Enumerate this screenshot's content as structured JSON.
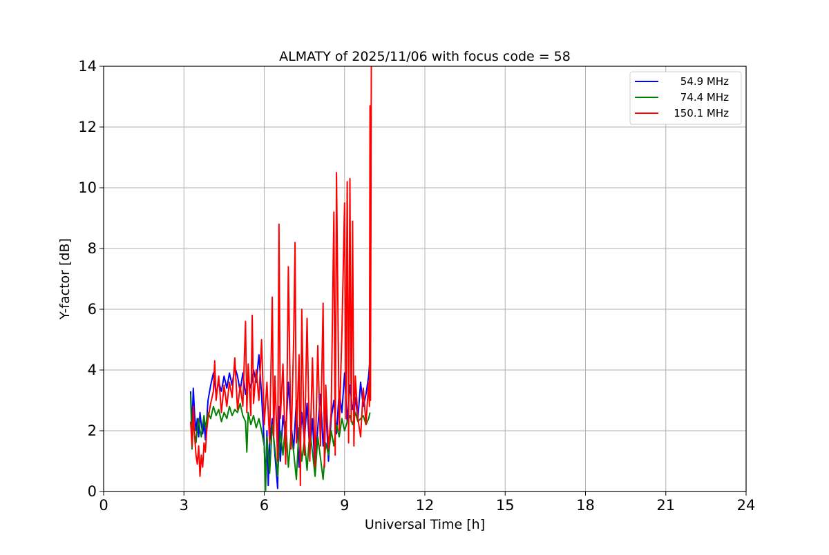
{
  "chart_data": {
    "type": "line",
    "title": "ALMATY of 2025/11/06 with focus code = 58",
    "xlabel": "Universal Time [h]",
    "ylabel": "Y-factor [dB]",
    "xlim": [
      0,
      24
    ],
    "ylim": [
      0,
      14
    ],
    "xticks": [
      0,
      3,
      6,
      9,
      12,
      15,
      18,
      21,
      24
    ],
    "yticks": [
      0,
      2,
      4,
      6,
      8,
      10,
      12,
      14
    ],
    "grid": true,
    "legend_position": "top-right",
    "series": [
      {
        "name": "54.9 MHz",
        "color": "#0000ff",
        "x": [
          3.25,
          3.3,
          3.35,
          3.4,
          3.45,
          3.5,
          3.55,
          3.6,
          3.65,
          3.7,
          3.75,
          3.8,
          3.9,
          4.0,
          4.1,
          4.2,
          4.3,
          4.4,
          4.5,
          4.6,
          4.7,
          4.8,
          4.9,
          5.0,
          5.1,
          5.2,
          5.3,
          5.4,
          5.5,
          5.6,
          5.7,
          5.8,
          5.9,
          6.0,
          6.05,
          6.1,
          6.15,
          6.2,
          6.3,
          6.4,
          6.5,
          6.55,
          6.6,
          6.7,
          6.8,
          6.9,
          7.0,
          7.1,
          7.2,
          7.3,
          7.4,
          7.5,
          7.6,
          7.7,
          7.8,
          7.9,
          8.0,
          8.1,
          8.2,
          8.3,
          8.4,
          8.5,
          8.6,
          8.7,
          8.8,
          8.9,
          9.0,
          9.1,
          9.2,
          9.3,
          9.4,
          9.5,
          9.6,
          9.7,
          9.8,
          9.9,
          9.95
        ],
        "y": [
          3.3,
          2.1,
          3.4,
          2.5,
          2.0,
          2.4,
          1.8,
          2.6,
          2.2,
          1.9,
          2.3,
          1.7,
          3.0,
          3.5,
          3.9,
          3.2,
          3.6,
          3.3,
          3.8,
          3.4,
          3.9,
          3.5,
          4.1,
          3.8,
          3.3,
          3.9,
          3.2,
          3.7,
          3.4,
          4.0,
          3.6,
          4.5,
          3.2,
          1.5,
          0.3,
          2.0,
          0.2,
          1.6,
          2.4,
          1.2,
          0.1,
          2.8,
          1.0,
          2.5,
          1.8,
          3.6,
          2.2,
          1.4,
          3.0,
          0.8,
          2.6,
          1.7,
          2.9,
          1.3,
          2.4,
          0.6,
          2.1,
          3.2,
          1.5,
          2.8,
          1.0,
          2.4,
          3.0,
          1.9,
          3.3,
          2.6,
          3.9,
          2.3,
          3.5,
          2.7,
          3.1,
          2.4,
          3.6,
          2.8,
          3.2,
          3.8,
          4.4
        ]
      },
      {
        "name": "74.4 MHz",
        "color": "#008000",
        "x": [
          3.25,
          3.3,
          3.35,
          3.4,
          3.45,
          3.5,
          3.55,
          3.6,
          3.65,
          3.7,
          3.75,
          3.8,
          3.9,
          4.0,
          4.1,
          4.2,
          4.3,
          4.4,
          4.5,
          4.6,
          4.7,
          4.8,
          4.9,
          5.0,
          5.1,
          5.2,
          5.3,
          5.35,
          5.4,
          5.5,
          5.6,
          5.7,
          5.8,
          5.9,
          6.0,
          6.05,
          6.1,
          6.2,
          6.3,
          6.4,
          6.5,
          6.6,
          6.7,
          6.8,
          6.9,
          7.0,
          7.1,
          7.2,
          7.3,
          7.4,
          7.5,
          7.6,
          7.7,
          7.8,
          7.9,
          8.0,
          8.1,
          8.2,
          8.3,
          8.4,
          8.5,
          8.6,
          8.7,
          8.8,
          8.9,
          9.0,
          9.1,
          9.2,
          9.3,
          9.4,
          9.5,
          9.6,
          9.7,
          9.8,
          9.9,
          9.95
        ],
        "y": [
          3.2,
          1.4,
          2.3,
          1.9,
          1.6,
          2.1,
          2.4,
          2.0,
          1.8,
          2.2,
          2.5,
          2.1,
          2.6,
          2.4,
          2.8,
          2.5,
          2.7,
          2.3,
          2.6,
          2.4,
          2.8,
          2.5,
          2.7,
          2.6,
          2.9,
          2.5,
          2.3,
          1.3,
          2.6,
          2.2,
          2.5,
          2.1,
          2.4,
          2.0,
          1.5,
          0.0,
          1.8,
          0.6,
          2.2,
          1.4,
          0.5,
          2.0,
          1.2,
          2.3,
          0.8,
          1.9,
          1.3,
          0.4,
          2.1,
          1.0,
          1.7,
          0.7,
          2.0,
          1.3,
          0.5,
          1.8,
          1.1,
          0.4,
          1.6,
          1.2,
          2.0,
          1.5,
          2.2,
          1.8,
          2.4,
          2.0,
          2.3,
          2.5,
          2.2,
          2.6,
          2.3,
          2.4,
          2.5,
          2.2,
          2.4,
          2.6
        ]
      },
      {
        "name": "150.1 MHz",
        "color": "#ff0000",
        "x": [
          3.25,
          3.3,
          3.35,
          3.4,
          3.45,
          3.5,
          3.55,
          3.6,
          3.65,
          3.7,
          3.75,
          3.8,
          3.85,
          3.9,
          4.0,
          4.1,
          4.15,
          4.2,
          4.3,
          4.4,
          4.5,
          4.6,
          4.7,
          4.8,
          4.9,
          5.0,
          5.1,
          5.2,
          5.3,
          5.35,
          5.4,
          5.5,
          5.55,
          5.6,
          5.7,
          5.8,
          5.9,
          6.0,
          6.1,
          6.2,
          6.3,
          6.35,
          6.4,
          6.5,
          6.55,
          6.6,
          6.7,
          6.8,
          6.85,
          6.9,
          7.0,
          7.1,
          7.15,
          7.2,
          7.3,
          7.35,
          7.4,
          7.5,
          7.6,
          7.7,
          7.8,
          7.9,
          8.0,
          8.1,
          8.2,
          8.25,
          8.3,
          8.4,
          8.5,
          8.6,
          8.65,
          8.7,
          8.8,
          8.9,
          9.0,
          9.05,
          9.1,
          9.15,
          9.2,
          9.25,
          9.3,
          9.35,
          9.4,
          9.5,
          9.6,
          9.7,
          9.8,
          9.9,
          9.93,
          9.95,
          9.97,
          10.0
        ],
        "y": [
          2.3,
          1.5,
          2.8,
          1.8,
          1.2,
          0.9,
          1.5,
          0.5,
          1.2,
          0.8,
          1.6,
          1.3,
          2.0,
          2.4,
          2.9,
          3.3,
          4.3,
          3.0,
          3.8,
          2.6,
          3.5,
          2.8,
          3.6,
          3.1,
          4.4,
          2.7,
          3.5,
          2.8,
          5.6,
          2.6,
          4.2,
          2.5,
          5.8,
          2.9,
          4.0,
          3.0,
          5.0,
          2.2,
          3.6,
          1.6,
          6.4,
          1.8,
          3.8,
          1.0,
          8.8,
          2.4,
          4.2,
          0.9,
          3.2,
          7.4,
          1.4,
          5.0,
          8.2,
          1.6,
          4.5,
          0.2,
          6.0,
          1.2,
          5.7,
          1.0,
          4.4,
          0.8,
          4.8,
          1.5,
          6.2,
          0.8,
          3.5,
          1.4,
          2.6,
          9.2,
          1.2,
          10.5,
          2.0,
          5.2,
          9.5,
          2.4,
          10.2,
          1.6,
          10.3,
          2.3,
          8.9,
          1.5,
          3.8,
          2.4,
          1.8,
          3.4,
          2.2,
          3.6,
          2.8,
          12.7,
          3.0,
          14.0
        ]
      }
    ]
  }
}
